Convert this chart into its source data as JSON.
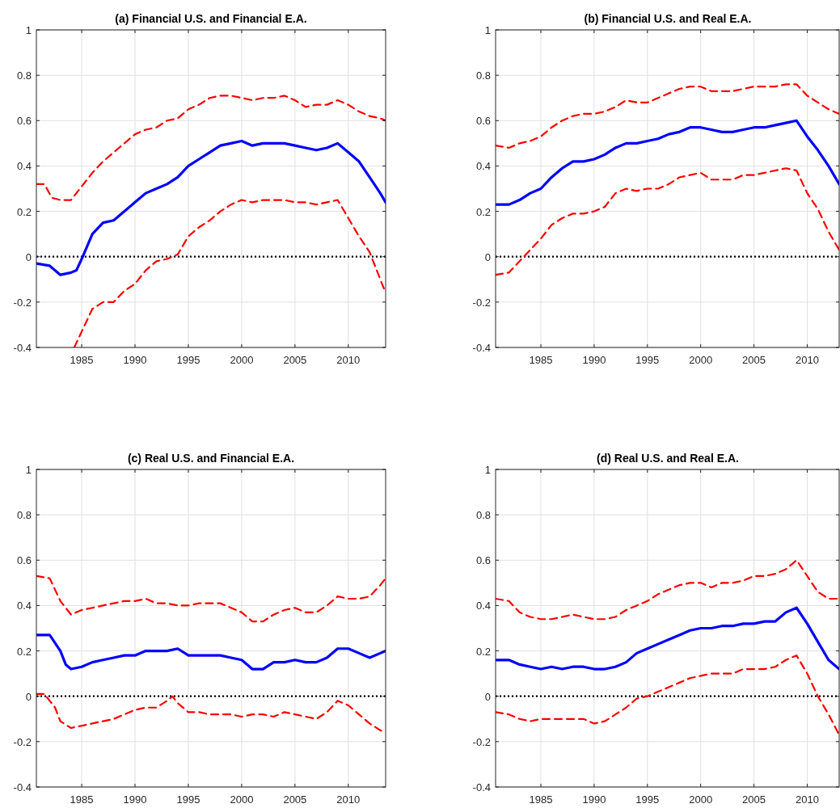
{
  "chart_data": [
    {
      "type": "line",
      "title": "(a) Financial U.S. and Financial E.A.",
      "xlim": [
        1980.75,
        2013.5
      ],
      "xticks": [
        1985,
        1990,
        1995,
        2000,
        2005,
        2010
      ],
      "ylim": [
        -0.4,
        1
      ],
      "yticks": [
        -0.4,
        -0.2,
        0,
        0.2,
        0.4,
        0.6,
        0.8,
        1
      ],
      "grid": true,
      "ref_lines": [
        {
          "axis": "y",
          "value": 0,
          "color": "#000000",
          "line_style": "dotted"
        }
      ],
      "series": [
        {
          "color": "#0000ff",
          "line_style": "solid",
          "x": [
            1980.75,
            1982,
            1983,
            1984,
            1984.5,
            1985,
            1986,
            1987,
            1988,
            1989,
            1990,
            1991,
            1992,
            1993,
            1994,
            1995,
            1996,
            1997,
            1998,
            1999,
            2000,
            2001,
            2002,
            2003,
            2004,
            2005,
            2006,
            2007,
            2008,
            2009,
            2010,
            2011,
            2012,
            2013,
            2013.5
          ],
          "values": [
            -0.03,
            -0.04,
            -0.08,
            -0.07,
            -0.06,
            -0.01,
            0.1,
            0.15,
            0.16,
            0.2,
            0.24,
            0.28,
            0.3,
            0.32,
            0.35,
            0.4,
            0.43,
            0.46,
            0.49,
            0.5,
            0.51,
            0.49,
            0.5,
            0.5,
            0.5,
            0.49,
            0.48,
            0.47,
            0.48,
            0.5,
            0.46,
            0.42,
            0.35,
            0.28,
            0.24
          ]
        },
        {
          "color": "#ff0000",
          "line_style": "dashed",
          "x": [
            1980.75,
            1981.5,
            1982.2,
            1983,
            1984,
            1985,
            1986,
            1987,
            1988,
            1989,
            1990,
            1991,
            1992,
            1993,
            1994,
            1995,
            1996,
            1997,
            1998,
            1999,
            2000,
            2001,
            2002,
            2003,
            2004,
            2005,
            2006,
            2007,
            2008,
            2009,
            2010,
            2011,
            2012,
            2013,
            2013.5
          ],
          "values": [
            0.32,
            0.32,
            0.26,
            0.25,
            0.25,
            0.31,
            0.37,
            0.42,
            0.46,
            0.5,
            0.54,
            0.56,
            0.57,
            0.6,
            0.61,
            0.65,
            0.67,
            0.7,
            0.71,
            0.71,
            0.7,
            0.69,
            0.7,
            0.7,
            0.71,
            0.69,
            0.66,
            0.67,
            0.67,
            0.69,
            0.67,
            0.64,
            0.62,
            0.61,
            0.6
          ]
        },
        {
          "color": "#ff0000",
          "line_style": "dashed",
          "x": [
            1984.3,
            1985,
            1986,
            1987,
            1988,
            1989,
            1990,
            1991,
            1992,
            1993,
            1994,
            1995,
            1996,
            1997,
            1998,
            1999,
            2000,
            2001,
            2002,
            2003,
            2004,
            2005,
            2006,
            2007,
            2008,
            2009,
            2010,
            2011,
            2012,
            2013,
            2013.5
          ],
          "values": [
            -0.4,
            -0.33,
            -0.23,
            -0.2,
            -0.2,
            -0.15,
            -0.12,
            -0.06,
            -0.02,
            -0.01,
            0.01,
            0.09,
            0.13,
            0.16,
            0.2,
            0.23,
            0.25,
            0.24,
            0.25,
            0.25,
            0.25,
            0.24,
            0.24,
            0.23,
            0.24,
            0.25,
            0.17,
            0.09,
            0.02,
            -0.1,
            -0.16
          ]
        }
      ]
    },
    {
      "type": "line",
      "title": "(b) Financial U.S. and Real E.A.",
      "xlim": [
        1980.75,
        2013
      ],
      "xticks": [
        1985,
        1990,
        1995,
        2000,
        2005,
        2010
      ],
      "ylim": [
        -0.4,
        1
      ],
      "yticks": [
        -0.4,
        -0.2,
        0,
        0.2,
        0.4,
        0.6,
        0.8,
        1
      ],
      "grid": true,
      "ref_lines": [
        {
          "axis": "y",
          "value": 0,
          "color": "#000000",
          "line_style": "dotted"
        }
      ],
      "series": [
        {
          "color": "#0000ff",
          "line_style": "solid",
          "x": [
            1980.75,
            1982,
            1983,
            1984,
            1985,
            1986,
            1987,
            1988,
            1989,
            1990,
            1991,
            1992,
            1993,
            1994,
            1995,
            1996,
            1997,
            1998,
            1999,
            2000,
            2001,
            2002,
            2003,
            2004,
            2005,
            2006,
            2007,
            2008,
            2009,
            2010,
            2011,
            2012,
            2013
          ],
          "values": [
            0.23,
            0.23,
            0.25,
            0.28,
            0.3,
            0.35,
            0.39,
            0.42,
            0.42,
            0.43,
            0.45,
            0.48,
            0.5,
            0.5,
            0.51,
            0.52,
            0.54,
            0.55,
            0.57,
            0.57,
            0.56,
            0.55,
            0.55,
            0.56,
            0.57,
            0.57,
            0.58,
            0.59,
            0.6,
            0.53,
            0.47,
            0.4,
            0.32
          ]
        },
        {
          "color": "#ff0000",
          "line_style": "dashed",
          "x": [
            1980.75,
            1982,
            1983,
            1984,
            1985,
            1986,
            1987,
            1988,
            1989,
            1990,
            1991,
            1992,
            1993,
            1994,
            1995,
            1996,
            1997,
            1998,
            1999,
            2000,
            2001,
            2002,
            2003,
            2004,
            2005,
            2006,
            2007,
            2008,
            2009,
            2010,
            2011,
            2012,
            2013
          ],
          "values": [
            0.49,
            0.48,
            0.5,
            0.51,
            0.53,
            0.57,
            0.6,
            0.62,
            0.63,
            0.63,
            0.64,
            0.66,
            0.69,
            0.68,
            0.68,
            0.7,
            0.72,
            0.74,
            0.75,
            0.75,
            0.73,
            0.73,
            0.73,
            0.74,
            0.75,
            0.75,
            0.75,
            0.76,
            0.76,
            0.71,
            0.68,
            0.65,
            0.63
          ]
        },
        {
          "color": "#ff0000",
          "line_style": "dashed",
          "x": [
            1980.75,
            1982,
            1983,
            1984,
            1985,
            1986,
            1987,
            1988,
            1989,
            1990,
            1991,
            1992,
            1993,
            1994,
            1995,
            1996,
            1997,
            1998,
            1999,
            2000,
            2001,
            2002,
            2003,
            2004,
            2005,
            2006,
            2007,
            2008,
            2009,
            2010,
            2011,
            2012,
            2013
          ],
          "values": [
            -0.08,
            -0.07,
            -0.02,
            0.03,
            0.08,
            0.14,
            0.17,
            0.19,
            0.19,
            0.2,
            0.22,
            0.28,
            0.3,
            0.29,
            0.3,
            0.3,
            0.32,
            0.35,
            0.36,
            0.37,
            0.34,
            0.34,
            0.34,
            0.36,
            0.36,
            0.37,
            0.38,
            0.39,
            0.38,
            0.28,
            0.21,
            0.11,
            0.03
          ]
        }
      ]
    },
    {
      "type": "line",
      "title": "(c) Real U.S. and Financial E.A.",
      "xlim": [
        1980.75,
        2013.5
      ],
      "xticks": [
        1985,
        1990,
        1995,
        2000,
        2005,
        2010
      ],
      "ylim": [
        -0.4,
        1
      ],
      "yticks": [
        -0.4,
        -0.2,
        0,
        0.2,
        0.4,
        0.6,
        0.8,
        1
      ],
      "grid": true,
      "ref_lines": [
        {
          "axis": "y",
          "value": 0,
          "color": "#000000",
          "line_style": "dotted"
        }
      ],
      "series": [
        {
          "color": "#0000ff",
          "line_style": "solid",
          "x": [
            1980.75,
            1982,
            1983,
            1983.5,
            1984,
            1985,
            1986,
            1987,
            1988,
            1989,
            1990,
            1991,
            1992,
            1993,
            1994,
            1995,
            1996,
            1997,
            1998,
            1999,
            2000,
            2001,
            2002,
            2003,
            2004,
            2005,
            2006,
            2007,
            2008,
            2009,
            2010,
            2011,
            2012,
            2013,
            2013.5
          ],
          "values": [
            0.27,
            0.27,
            0.2,
            0.14,
            0.12,
            0.13,
            0.15,
            0.16,
            0.17,
            0.18,
            0.18,
            0.2,
            0.2,
            0.2,
            0.21,
            0.18,
            0.18,
            0.18,
            0.18,
            0.17,
            0.16,
            0.12,
            0.12,
            0.15,
            0.15,
            0.16,
            0.15,
            0.15,
            0.17,
            0.21,
            0.21,
            0.19,
            0.17,
            0.19,
            0.2
          ]
        },
        {
          "color": "#ff0000",
          "line_style": "dashed",
          "x": [
            1980.75,
            1982,
            1983,
            1984,
            1985,
            1986,
            1987,
            1988,
            1989,
            1990,
            1991,
            1992,
            1993,
            1994,
            1995,
            1996,
            1997,
            1998,
            1999,
            2000,
            2001,
            2002,
            2003,
            2004,
            2005,
            2006,
            2007,
            2008,
            2009,
            2010,
            2011,
            2012,
            2013,
            2013.5
          ],
          "values": [
            0.53,
            0.52,
            0.42,
            0.36,
            0.38,
            0.39,
            0.4,
            0.41,
            0.42,
            0.42,
            0.43,
            0.41,
            0.41,
            0.4,
            0.4,
            0.41,
            0.41,
            0.41,
            0.39,
            0.37,
            0.33,
            0.33,
            0.36,
            0.38,
            0.39,
            0.37,
            0.37,
            0.4,
            0.44,
            0.43,
            0.43,
            0.44,
            0.49,
            0.52
          ]
        },
        {
          "color": "#ff0000",
          "line_style": "dashed",
          "x": [
            1980.75,
            1981.5,
            1982.5,
            1983,
            1984,
            1985,
            1986,
            1987,
            1988,
            1989,
            1990,
            1991,
            1992,
            1993,
            1993.5,
            1994,
            1995,
            1996,
            1997,
            1998,
            1999,
            2000,
            2001,
            2002,
            2003,
            2004,
            2005,
            2006,
            2007,
            2008,
            2009,
            2010,
            2011,
            2012,
            2013,
            2013.5
          ],
          "values": [
            0.01,
            0.01,
            -0.05,
            -0.11,
            -0.14,
            -0.13,
            -0.12,
            -0.11,
            -0.1,
            -0.08,
            -0.06,
            -0.05,
            -0.05,
            -0.02,
            0,
            -0.03,
            -0.07,
            -0.07,
            -0.08,
            -0.08,
            -0.08,
            -0.09,
            -0.08,
            -0.08,
            -0.09,
            -0.07,
            -0.08,
            -0.09,
            -0.1,
            -0.07,
            -0.02,
            -0.04,
            -0.08,
            -0.12,
            -0.15,
            -0.16
          ]
        }
      ]
    },
    {
      "type": "line",
      "title": "(d) Real U.S. and Real E.A.",
      "xlim": [
        1980.75,
        2013
      ],
      "xticks": [
        1985,
        1990,
        1995,
        2000,
        2005,
        2010
      ],
      "ylim": [
        -0.4,
        1
      ],
      "yticks": [
        -0.4,
        -0.2,
        0,
        0.2,
        0.4,
        0.6,
        0.8,
        1
      ],
      "grid": true,
      "ref_lines": [
        {
          "axis": "y",
          "value": 0,
          "color": "#000000",
          "line_style": "dotted"
        }
      ],
      "series": [
        {
          "color": "#0000ff",
          "line_style": "solid",
          "x": [
            1980.75,
            1982,
            1983,
            1984,
            1985,
            1986,
            1987,
            1988,
            1989,
            1990,
            1991,
            1992,
            1993,
            1994,
            1995,
            1996,
            1997,
            1998,
            1999,
            2000,
            2001,
            2002,
            2003,
            2004,
            2005,
            2006,
            2007,
            2008,
            2009,
            2010,
            2011,
            2012,
            2013
          ],
          "values": [
            0.16,
            0.16,
            0.14,
            0.13,
            0.12,
            0.13,
            0.12,
            0.13,
            0.13,
            0.12,
            0.12,
            0.13,
            0.15,
            0.19,
            0.21,
            0.23,
            0.25,
            0.27,
            0.29,
            0.3,
            0.3,
            0.31,
            0.31,
            0.32,
            0.32,
            0.33,
            0.33,
            0.37,
            0.39,
            0.32,
            0.24,
            0.16,
            0.12
          ]
        },
        {
          "color": "#ff0000",
          "line_style": "dashed",
          "x": [
            1980.75,
            1982,
            1983,
            1984,
            1985,
            1986,
            1987,
            1988,
            1989,
            1990,
            1991,
            1992,
            1993,
            1994,
            1995,
            1996,
            1997,
            1998,
            1999,
            2000,
            2001,
            2002,
            2003,
            2004,
            2005,
            2006,
            2007,
            2008,
            2009,
            2010,
            2011,
            2012,
            2013
          ],
          "values": [
            0.43,
            0.42,
            0.37,
            0.35,
            0.34,
            0.34,
            0.35,
            0.36,
            0.35,
            0.34,
            0.34,
            0.35,
            0.38,
            0.4,
            0.42,
            0.45,
            0.47,
            0.49,
            0.5,
            0.5,
            0.48,
            0.5,
            0.5,
            0.51,
            0.53,
            0.53,
            0.54,
            0.56,
            0.6,
            0.53,
            0.46,
            0.43,
            0.43
          ]
        },
        {
          "color": "#ff0000",
          "line_style": "dashed",
          "x": [
            1980.75,
            1982,
            1983,
            1984,
            1985,
            1986,
            1987,
            1988,
            1989,
            1990,
            1991,
            1992,
            1993,
            1994,
            1995,
            1996,
            1997,
            1998,
            1999,
            2000,
            2001,
            2002,
            2003,
            2004,
            2005,
            2006,
            2007,
            2008,
            2009,
            2010,
            2011,
            2012,
            2013
          ],
          "values": [
            -0.07,
            -0.08,
            -0.1,
            -0.11,
            -0.1,
            -0.1,
            -0.1,
            -0.1,
            -0.1,
            -0.12,
            -0.11,
            -0.08,
            -0.05,
            -0.01,
            0,
            0.02,
            0.04,
            0.06,
            0.08,
            0.09,
            0.1,
            0.1,
            0.1,
            0.12,
            0.12,
            0.12,
            0.13,
            0.16,
            0.18,
            0.1,
            0,
            -0.08,
            -0.17
          ]
        }
      ]
    }
  ]
}
